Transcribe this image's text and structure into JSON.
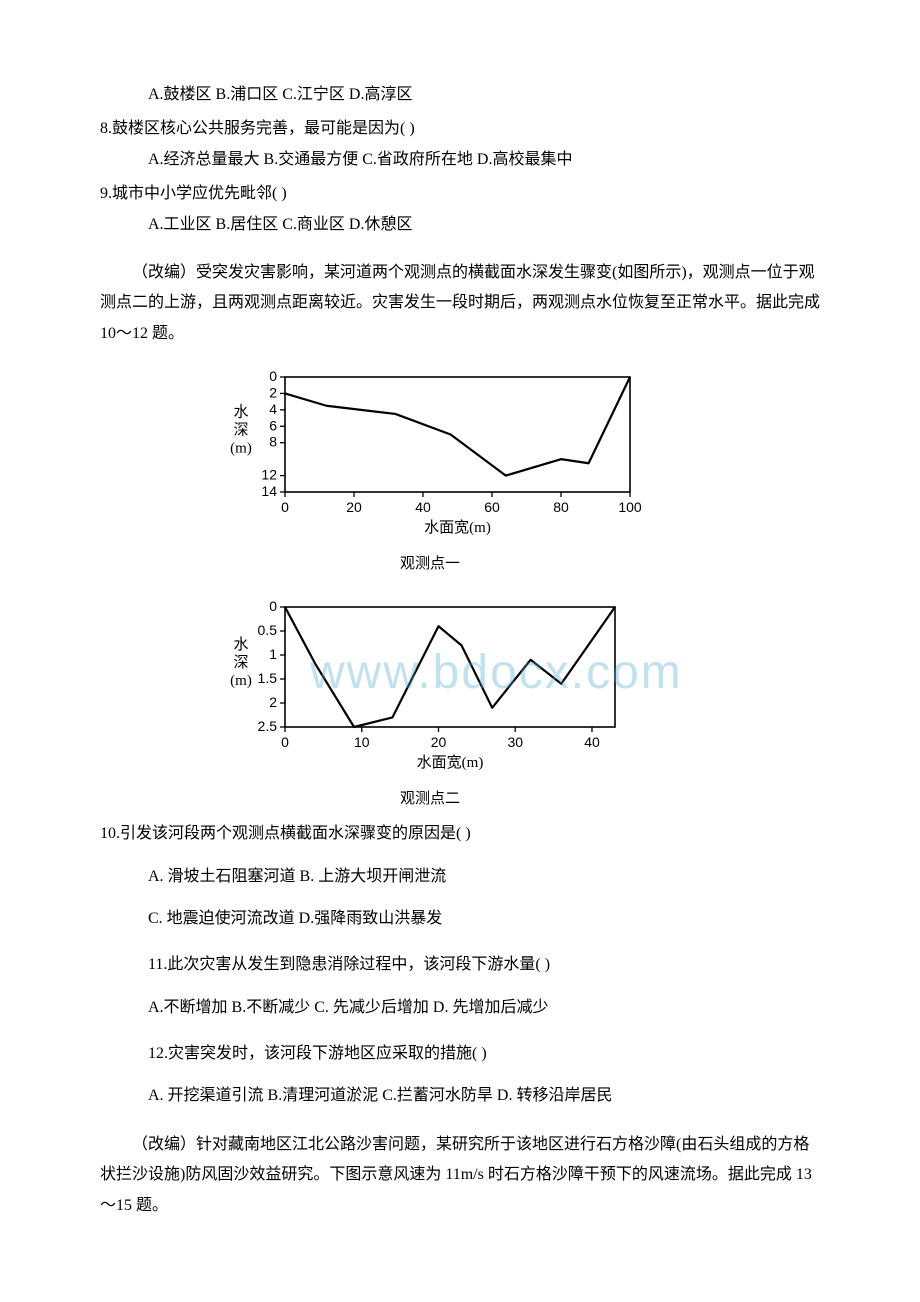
{
  "q7": {
    "options": "A.鼓楼区 B.浦口区 C.江宁区 D.高淳区"
  },
  "q8": {
    "stem": "8.鼓楼区核心公共服务完善，最可能是因为(   )",
    "options": "A.经济总量最大 B.交通最方便 C.省政府所在地 D.高校最集中"
  },
  "q9": {
    "stem": "9.城市中小学应优先毗邻(   )",
    "options": "A.工业区 B.居住区 C.商业区 D.休憩区"
  },
  "passage1": "（改编）受突发灾害影响，某河道两个观测点的横截面水深发生骤变(如图所示)，观测点一位于观测点二的上游，且两观测点距离较近。灾害发生一段时期后，两观测点水位恢复至正常水平。据此完成 10～12 题。",
  "chart1": {
    "caption": "观测点一",
    "x_label": "水面宽(m)",
    "y_label_lines": [
      "水",
      "深",
      "(m)"
    ],
    "x_ticks": [
      0,
      20,
      40,
      60,
      80,
      100
    ],
    "y_ticks": [
      0,
      2,
      4,
      6,
      8,
      12,
      14
    ],
    "points": [
      {
        "x": 0,
        "y": 2
      },
      {
        "x": 12,
        "y": 3.5
      },
      {
        "x": 32,
        "y": 4.5
      },
      {
        "x": 48,
        "y": 7
      },
      {
        "x": 64,
        "y": 12
      },
      {
        "x": 80,
        "y": 10
      },
      {
        "x": 88,
        "y": 10.5
      },
      {
        "x": 100,
        "y": 0
      }
    ],
    "stroke": "#000000",
    "stroke_width": 2.2,
    "tick_font": 14,
    "label_font": 15
  },
  "chart2": {
    "caption": "观测点二",
    "x_label": "水面宽(m)",
    "y_label_lines": [
      "水",
      "深",
      "(m)"
    ],
    "x_ticks": [
      0,
      10,
      20,
      30,
      40
    ],
    "y_ticks": [
      0,
      0.5,
      1.0,
      1.5,
      2.0,
      2.5
    ],
    "points": [
      {
        "x": 0,
        "y": 0
      },
      {
        "x": 4,
        "y": 1.2
      },
      {
        "x": 9,
        "y": 2.5
      },
      {
        "x": 14,
        "y": 2.3
      },
      {
        "x": 20,
        "y": 0.4
      },
      {
        "x": 23,
        "y": 0.8
      },
      {
        "x": 27,
        "y": 2.1
      },
      {
        "x": 32,
        "y": 1.1
      },
      {
        "x": 36,
        "y": 1.6
      },
      {
        "x": 43,
        "y": 0
      }
    ],
    "stroke": "#000000",
    "stroke_width": 2.2,
    "tick_font": 14,
    "label_font": 15
  },
  "watermark": "www.bdocx.com",
  "q10": {
    "stem": "10.引发该河段两个观测点横截面水深骤变的原因是(   )",
    "options_ab": "A. 滑坡土石阻塞河道 B. 上游大坝开闸泄流",
    "options_cd": "C. 地震迫使河流改道 D.强降雨致山洪暴发"
  },
  "q11": {
    "stem": "11.此次灾害从发生到隐患消除过程中，该河段下游水量(   )",
    "options": "A.不断增加 B.不断减少 C. 先减少后增加 D. 先增加后减少"
  },
  "q12": {
    "stem": "12.灾害突发时，该河段下游地区应采取的措施(   )",
    "options": "A. 开挖渠道引流 B.清理河道淤泥 C.拦蓄河水防旱 D. 转移沿岸居民"
  },
  "passage2": "（改编）针对藏南地区江北公路沙害问题，某研究所于该地区进行石方格沙障(由石头组成的方格状拦沙设施)防风固沙效益研究。下图示意风速为 11m/s 时石方格沙障干预下的风速流场。据此完成 13～15 题。"
}
